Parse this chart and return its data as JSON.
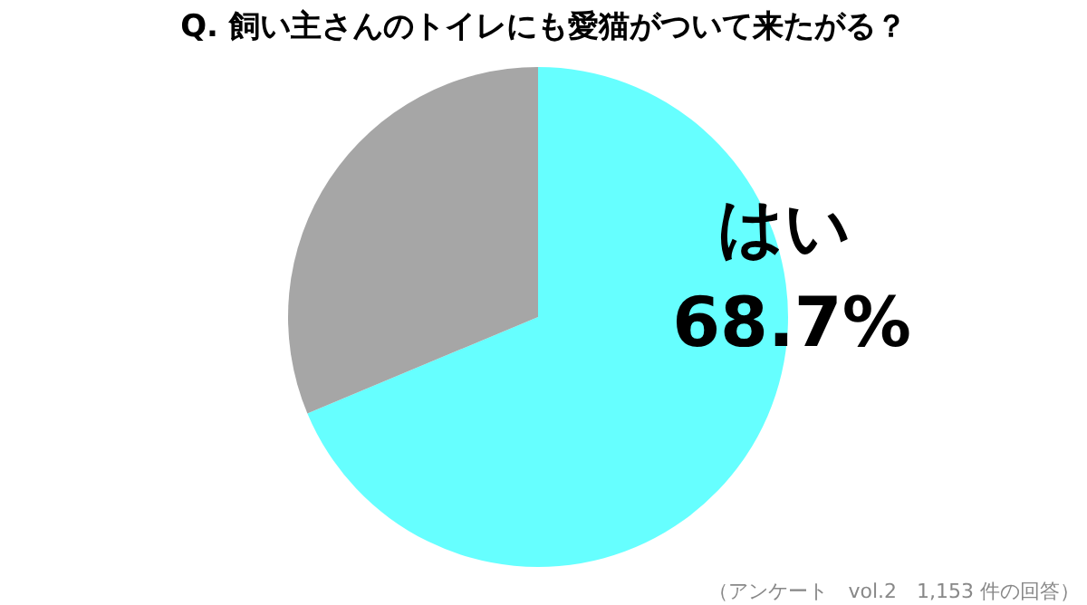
{
  "chart_data": {
    "type": "pie",
    "title": "Q. 飼い主さんのトイレにも愛猫がついて来たがる？",
    "categories": [
      "はい",
      null
    ],
    "values": [
      68.7,
      31.3
    ],
    "colors": [
      "#66ffff",
      "#a6a6a6"
    ],
    "value_labels": [
      "68.7%",
      null
    ],
    "annotations": [
      "（アンケート　vol.2　1,153 件の回答）"
    ]
  }
}
